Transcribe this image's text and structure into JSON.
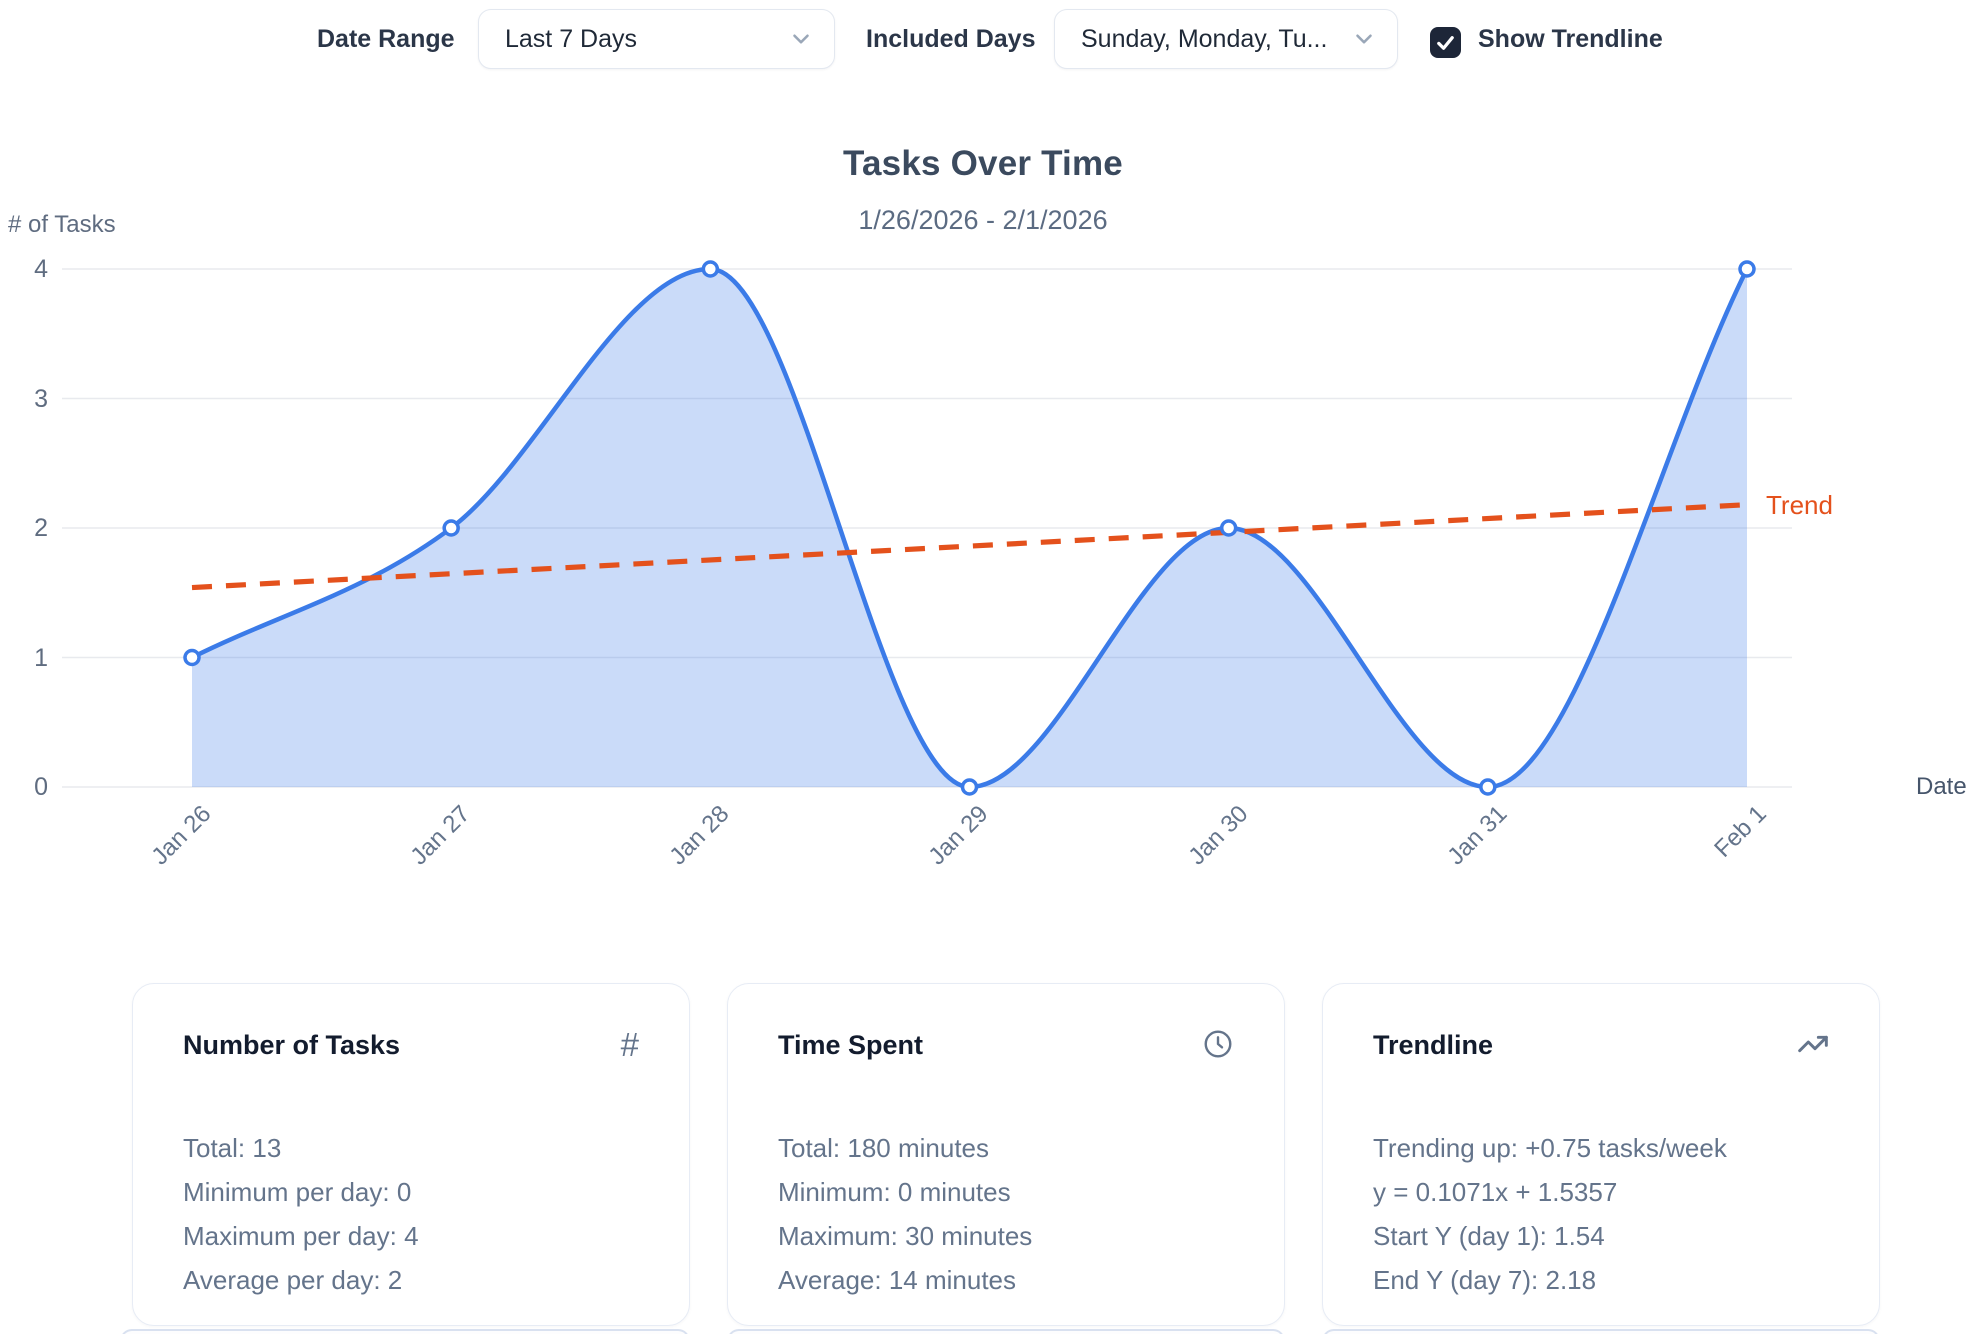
{
  "controls": {
    "date_range_label": "Date Range",
    "date_range_value": "Last 7 Days",
    "included_days_label": "Included Days",
    "included_days_value": "Sunday, Monday, Tu...",
    "show_trendline_label": "Show Trendline",
    "show_trendline_checked": true,
    "checkbox_color": "#1d2638"
  },
  "chart_data": {
    "type": "area",
    "title": "Tasks Over Time",
    "subtitle": "1/26/2026 - 2/1/2026",
    "xlabel": "Date",
    "ylabel": "# of Tasks",
    "x": [
      "Jan 26",
      "Jan 27",
      "Jan 28",
      "Jan 29",
      "Jan 30",
      "Jan 31",
      "Feb 1"
    ],
    "series": [
      {
        "name": "Tasks",
        "values": [
          1,
          2,
          4,
          0,
          2,
          0,
          4
        ]
      }
    ],
    "trendline": {
      "label": "Trend",
      "equation": "y = 0.1071x + 1.5357",
      "slope": 0.1071,
      "intercept": 1.5357,
      "start_y": 1.54,
      "end_y": 2.18
    },
    "ylim": [
      0,
      4
    ],
    "yticks": [
      0,
      1,
      2,
      3,
      4
    ],
    "grid": true,
    "legend_position": "inline-right",
    "colors": {
      "line": "#3b7be8",
      "fill": "rgba(59,123,232,0.27)",
      "trend": "#e4511c",
      "grid": "#e8eaee",
      "tick_text": "#5f6c80"
    }
  },
  "cards": [
    {
      "title": "Number of Tasks",
      "icon": "hash-icon",
      "lines": [
        "Total: 13",
        "Minimum per day: 0",
        "Maximum per day: 4",
        "Average per day: 2"
      ]
    },
    {
      "title": "Time Spent",
      "icon": "clock-icon",
      "lines": [
        "Total: 180 minutes",
        "Minimum: 0 minutes",
        "Maximum: 30 minutes",
        "Average: 14 minutes"
      ]
    },
    {
      "title": "Trendline",
      "icon": "trending-up-icon",
      "lines": [
        "Trending up: +0.75 tasks/week",
        "y = 0.1071x + 1.5357",
        "Start Y (day 1): 1.54",
        "End Y (day 7): 2.18"
      ]
    }
  ]
}
